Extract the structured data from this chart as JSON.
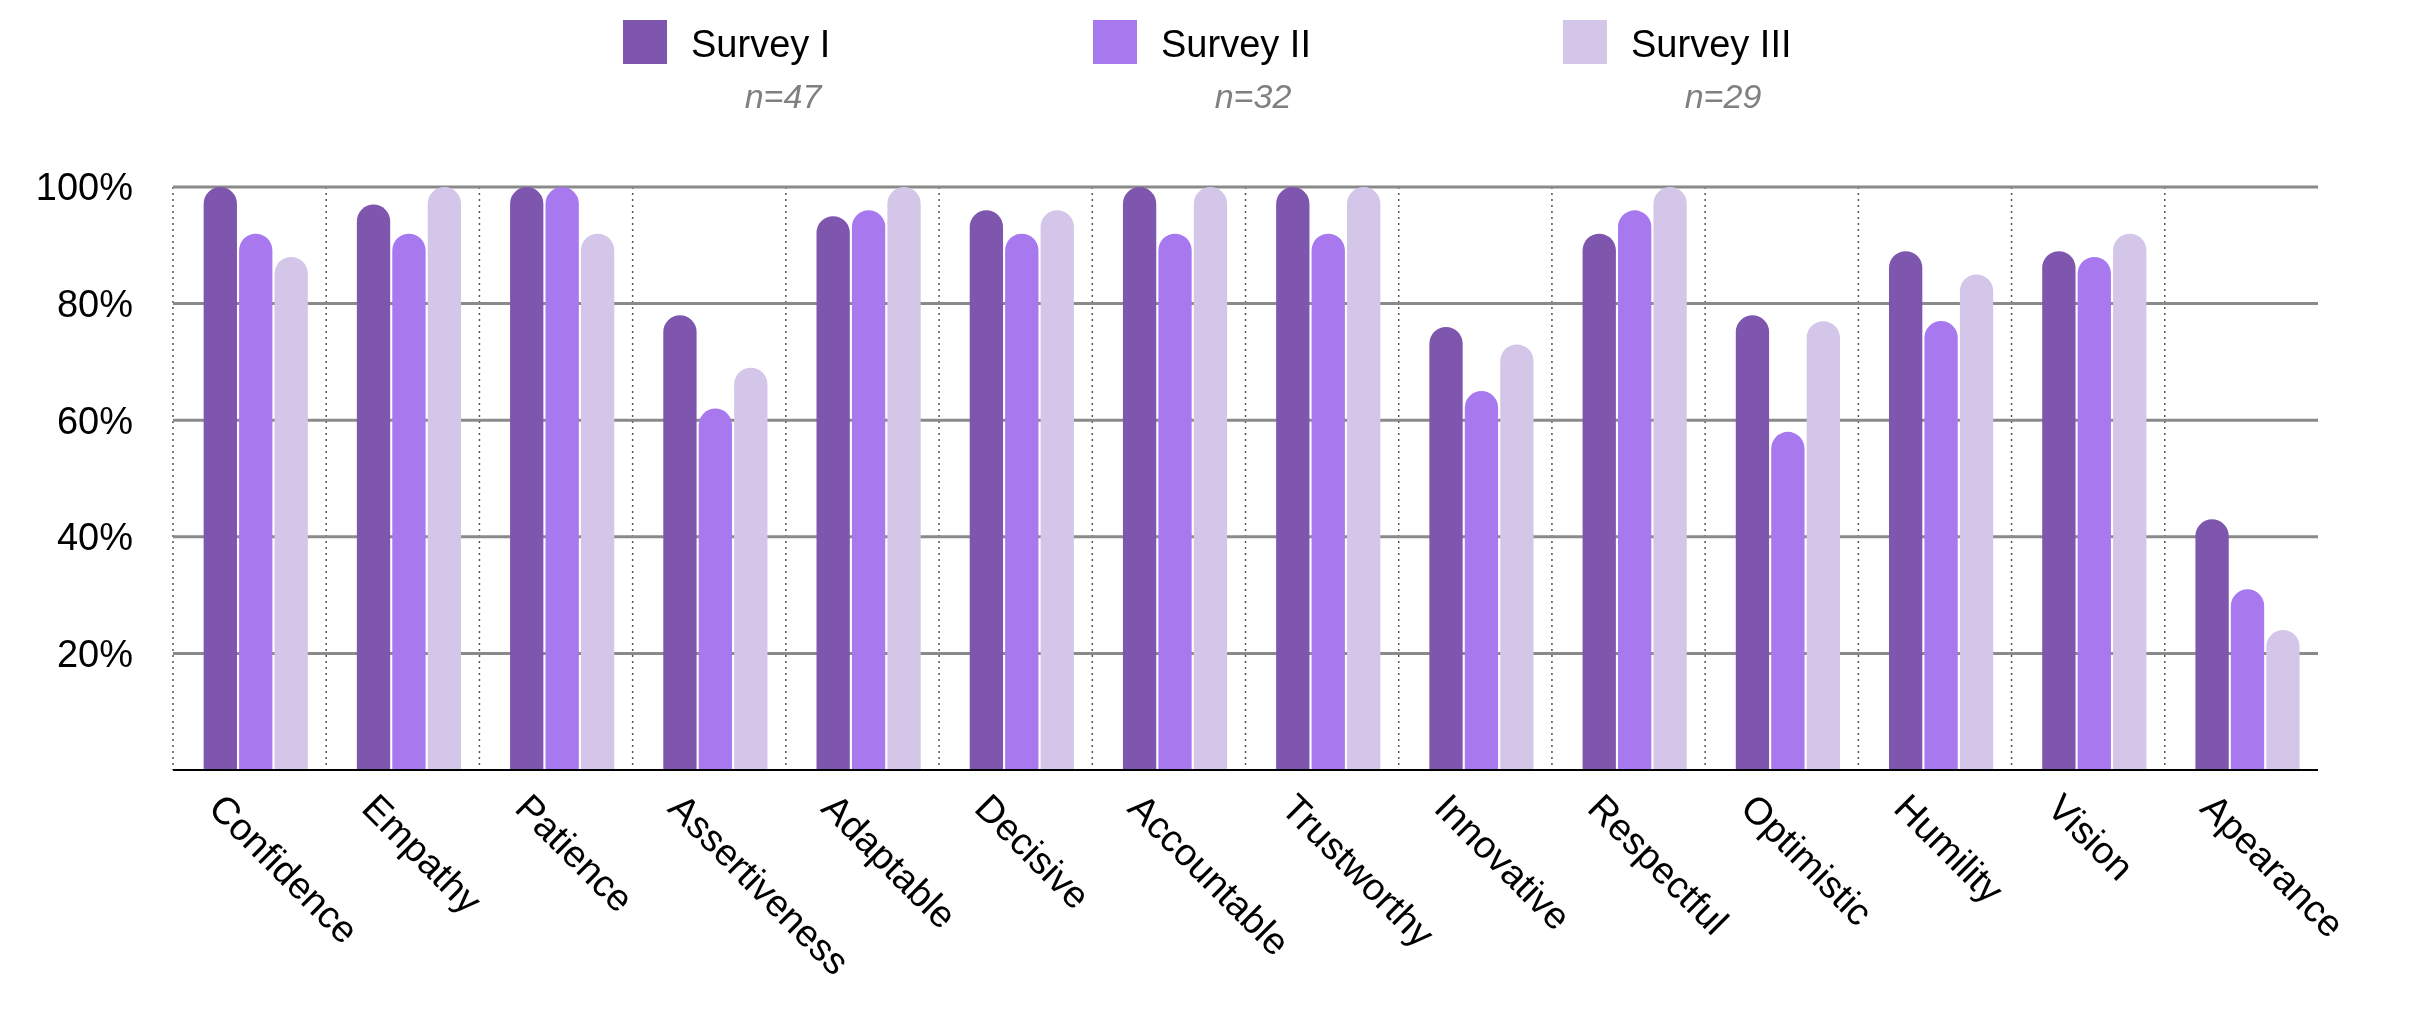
{
  "chart_data": {
    "type": "bar",
    "categories": [
      "Confidence",
      "Empathy",
      "Patience",
      "Assertiveness",
      "Adaptable",
      "Decisive",
      "Accountable",
      "Trustworthy",
      "Innovative",
      "Respectful",
      "Optimistic",
      "Humility",
      "Vision",
      "Apearance"
    ],
    "series": [
      {
        "name": "Survey I",
        "color": "#7f56ae",
        "values": [
          100,
          97,
          100,
          78,
          95,
          96,
          100,
          100,
          76,
          92,
          78,
          89,
          89,
          43
        ]
      },
      {
        "name": "Survey II",
        "color": "#a878ef",
        "values": [
          92,
          92,
          100,
          62,
          96,
          92,
          92,
          92,
          65,
          96,
          58,
          77,
          88,
          31
        ]
      },
      {
        "name": "Survey III",
        "color": "#d4c6e8",
        "values": [
          88,
          100,
          92,
          69,
          100,
          96,
          100,
          100,
          73,
          100,
          77,
          85,
          92,
          24
        ]
      }
    ],
    "annotations": [
      "n=47",
      "n=32",
      "n=29"
    ],
    "ylim": [
      0,
      100
    ],
    "yticks": [
      {
        "value": 20,
        "label": "20%"
      },
      {
        "value": 40,
        "label": "40%"
      },
      {
        "value": 60,
        "label": "60%"
      },
      {
        "value": 80,
        "label": "80%"
      },
      {
        "value": 100,
        "label": "100%"
      }
    ],
    "grid": true,
    "legend": "top"
  }
}
